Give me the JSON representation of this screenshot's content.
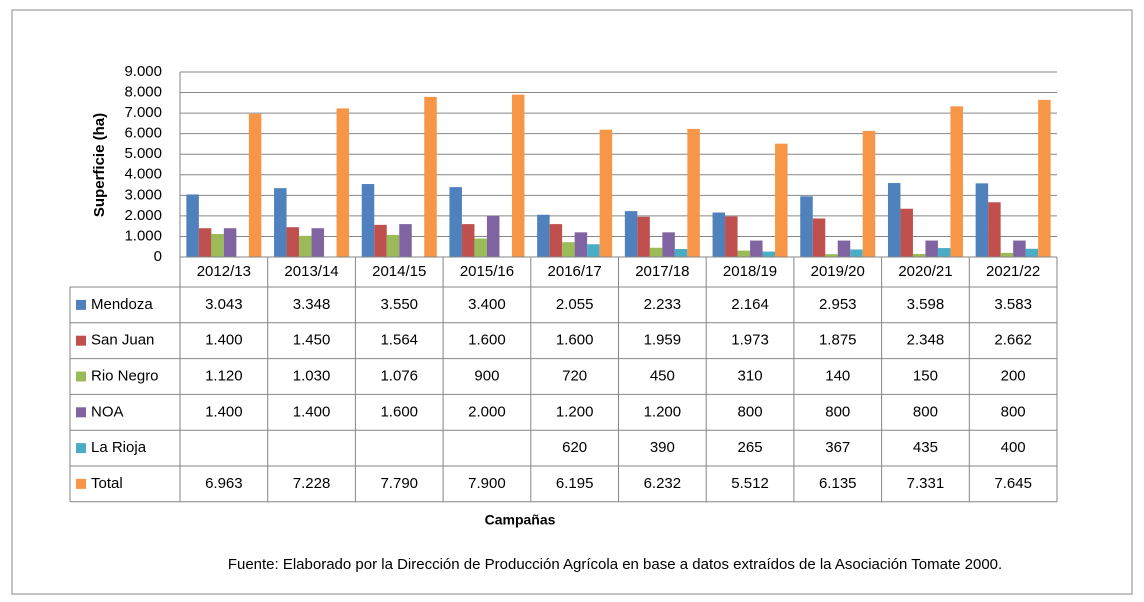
{
  "chart_data": {
    "type": "bar",
    "y_label": "Superficie (ha)",
    "x_label": "Campañas",
    "note": "Fuente: Elaborado por la Dirección de  Producción Agrícola en base a datos extraídos de la Asociación Tomate 2000.",
    "categories": [
      "2012/13",
      "2013/14",
      "2014/15",
      "2015/16",
      "2016/17",
      "2017/18",
      "2018/19",
      "2019/20",
      "2020/21",
      "2021/22"
    ],
    "series": [
      {
        "name": "Mendoza",
        "color": "#4f81bd",
        "values": [
          3043,
          3348,
          3550,
          3400,
          2055,
          2233,
          2164,
          2953,
          3598,
          3583
        ],
        "value_labels": [
          "3.043",
          "3.348",
          "3.550",
          "3.400",
          "2.055",
          "2.233",
          "2.164",
          "2.953",
          "3.598",
          "3.583"
        ]
      },
      {
        "name": "San Juan",
        "color": "#c0504d",
        "values": [
          1400,
          1450,
          1564,
          1600,
          1600,
          1959,
          1973,
          1875,
          2348,
          2662
        ],
        "value_labels": [
          "1.400",
          "1.450",
          "1.564",
          "1.600",
          "1.600",
          "1.959",
          "1.973",
          "1.875",
          "2.348",
          "2.662"
        ]
      },
      {
        "name": "Rio Negro",
        "color": "#9bbb59",
        "values": [
          1120,
          1030,
          1076,
          900,
          720,
          450,
          310,
          140,
          150,
          200
        ],
        "value_labels": [
          "1.120",
          "1.030",
          "1.076",
          "900",
          "720",
          "450",
          "310",
          "140",
          "150",
          "200"
        ]
      },
      {
        "name": "NOA",
        "color": "#8064a2",
        "values": [
          1400,
          1400,
          1600,
          2000,
          1200,
          1200,
          800,
          800,
          800,
          800
        ],
        "value_labels": [
          "1.400",
          "1.400",
          "1.600",
          "2.000",
          "1.200",
          "1.200",
          "800",
          "800",
          "800",
          "800"
        ]
      },
      {
        "name": "La Rioja",
        "color": "#4bacc6",
        "values": [
          null,
          null,
          null,
          null,
          620,
          390,
          265,
          367,
          435,
          400
        ],
        "value_labels": [
          null,
          null,
          null,
          null,
          "620",
          "390",
          "265",
          "367",
          "435",
          "400"
        ]
      },
      {
        "name": "Total",
        "color": "#f79646",
        "values": [
          6963,
          7228,
          7790,
          7900,
          6195,
          6232,
          5512,
          6135,
          7331,
          7645
        ],
        "value_labels": [
          "6.963",
          "7.228",
          "7.790",
          "7.900",
          "6.195",
          "6.232",
          "5.512",
          "6.135",
          "7.331",
          "7.645"
        ]
      }
    ],
    "ylim": [
      0,
      9000
    ],
    "yticks": [
      0,
      {
        "value": 1000,
        "label": "1.000"
      },
      {
        "value": 2000,
        "label": "2.000"
      },
      {
        "value": 3000,
        "label": "3.000"
      },
      {
        "value": 4000,
        "label": "4.000"
      },
      {
        "value": 5000,
        "label": "5.000"
      },
      {
        "value": 6000,
        "label": "6.000"
      },
      {
        "value": 7000,
        "label": "7.000"
      },
      {
        "value": 8000,
        "label": "8.000"
      },
      {
        "value": 9000,
        "label": "9.000"
      }
    ],
    "grid": true
  }
}
